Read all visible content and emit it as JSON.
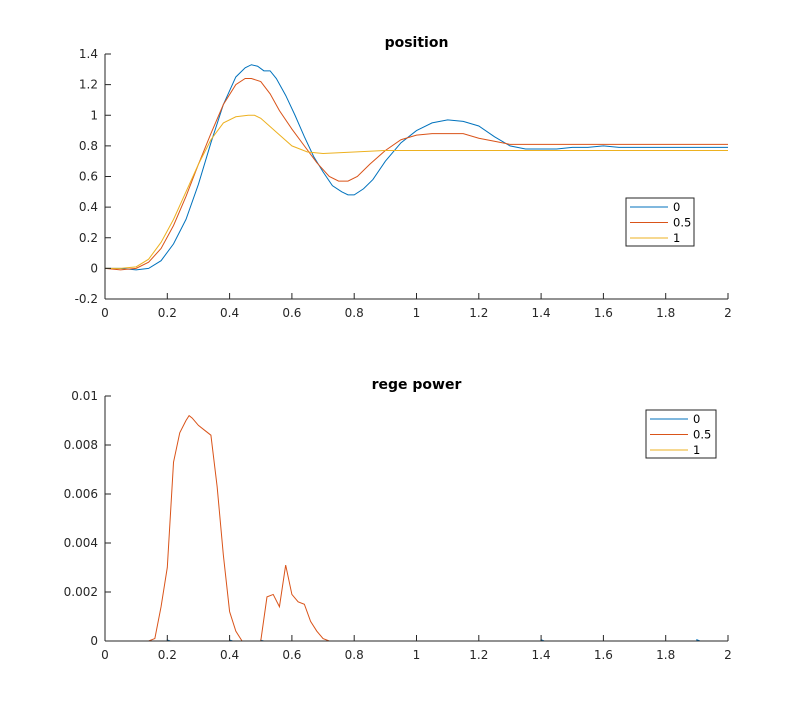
{
  "chart_data": [
    {
      "type": "line",
      "title": "position",
      "xlabel": "",
      "ylabel": "",
      "xlim": [
        0,
        2
      ],
      "ylim": [
        -0.2,
        1.4
      ],
      "xticks": [
        "0",
        "0.2",
        "0.4",
        "0.6",
        "0.8",
        "1",
        "1.2",
        "1.4",
        "1.6",
        "1.8",
        "2"
      ],
      "yticks": [
        "-0.2",
        "0",
        "0.2",
        "0.4",
        "0.6",
        "0.8",
        "1",
        "1.2",
        "1.4"
      ],
      "grid": false,
      "legend_position": "right",
      "series": [
        {
          "name": "0",
          "color": "#0072BD",
          "x": [
            0,
            0.05,
            0.1,
            0.14,
            0.18,
            0.22,
            0.26,
            0.3,
            0.34,
            0.38,
            0.42,
            0.45,
            0.47,
            0.49,
            0.51,
            0.53,
            0.55,
            0.58,
            0.61,
            0.64,
            0.67,
            0.7,
            0.73,
            0.76,
            0.78,
            0.8,
            0.83,
            0.86,
            0.9,
            0.95,
            1.0,
            1.05,
            1.1,
            1.15,
            1.2,
            1.25,
            1.3,
            1.35,
            1.4,
            1.45,
            1.5,
            1.55,
            1.6,
            1.65,
            1.7,
            1.75,
            1.8,
            1.85,
            1.9,
            1.95,
            2.0
          ],
          "y": [
            0,
            0,
            -0.01,
            0.0,
            0.05,
            0.16,
            0.32,
            0.55,
            0.82,
            1.07,
            1.25,
            1.31,
            1.33,
            1.32,
            1.29,
            1.29,
            1.24,
            1.13,
            1.0,
            0.86,
            0.73,
            0.63,
            0.54,
            0.5,
            0.48,
            0.48,
            0.52,
            0.58,
            0.7,
            0.82,
            0.9,
            0.95,
            0.97,
            0.96,
            0.93,
            0.86,
            0.8,
            0.78,
            0.78,
            0.78,
            0.79,
            0.79,
            0.8,
            0.79,
            0.79,
            0.79,
            0.79,
            0.79,
            0.79,
            0.79,
            0.79
          ]
        },
        {
          "name": "0.5",
          "color": "#D95319",
          "x": [
            0,
            0.05,
            0.1,
            0.14,
            0.18,
            0.22,
            0.26,
            0.3,
            0.34,
            0.38,
            0.42,
            0.45,
            0.47,
            0.5,
            0.53,
            0.56,
            0.6,
            0.64,
            0.68,
            0.72,
            0.75,
            0.78,
            0.81,
            0.85,
            0.9,
            0.95,
            1.0,
            1.05,
            1.1,
            1.15,
            1.2,
            1.25,
            1.3,
            1.4,
            1.5,
            1.6,
            1.7,
            1.8,
            1.9,
            2.0
          ],
          "y": [
            0,
            -0.01,
            0.0,
            0.04,
            0.13,
            0.28,
            0.47,
            0.68,
            0.88,
            1.07,
            1.2,
            1.24,
            1.24,
            1.22,
            1.14,
            1.03,
            0.91,
            0.8,
            0.69,
            0.6,
            0.57,
            0.57,
            0.6,
            0.68,
            0.77,
            0.84,
            0.87,
            0.88,
            0.88,
            0.88,
            0.85,
            0.83,
            0.81,
            0.81,
            0.81,
            0.81,
            0.81,
            0.81,
            0.81,
            0.81
          ]
        },
        {
          "name": "1",
          "color": "#EDB120",
          "x": [
            0,
            0.05,
            0.1,
            0.14,
            0.18,
            0.22,
            0.26,
            0.3,
            0.34,
            0.38,
            0.42,
            0.46,
            0.48,
            0.5,
            0.55,
            0.6,
            0.65,
            0.7,
            0.8,
            0.9,
            1.0,
            1.2,
            1.4,
            1.6,
            1.8,
            2.0
          ],
          "y": [
            0,
            0,
            0.01,
            0.06,
            0.17,
            0.32,
            0.5,
            0.68,
            0.84,
            0.95,
            0.99,
            1.0,
            1.0,
            0.98,
            0.89,
            0.8,
            0.76,
            0.75,
            0.76,
            0.77,
            0.77,
            0.77,
            0.77,
            0.77,
            0.77,
            0.77
          ]
        }
      ]
    },
    {
      "type": "line",
      "title": "rege power",
      "xlabel": "",
      "ylabel": "",
      "xlim": [
        0,
        2
      ],
      "ylim": [
        0,
        0.01
      ],
      "xticks": [
        "0",
        "0.2",
        "0.4",
        "0.6",
        "0.8",
        "1",
        "1.2",
        "1.4",
        "1.6",
        "1.8",
        "2"
      ],
      "yticks": [
        "0",
        "0.002",
        "0.004",
        "0.006",
        "0.008",
        "0.01"
      ],
      "grid": false,
      "legend_position": "top-right",
      "series": [
        {
          "name": "0",
          "color": "#0072BD",
          "x": [
            0,
            0.2,
            0.2,
            0.21,
            0.4,
            0.4,
            0.41,
            0.5,
            0.5,
            0.51,
            0.8,
            1.0,
            1.4,
            1.4,
            1.41,
            1.6,
            1.9,
            1.9,
            1.91,
            2.0
          ],
          "y": [
            0,
            0,
            4e-05,
            0,
            0,
            4e-05,
            0,
            0,
            3e-05,
            0,
            0,
            0,
            0,
            5e-05,
            0,
            0,
            0,
            5e-05,
            0,
            0
          ]
        },
        {
          "name": "0.5",
          "color": "#D95319",
          "x": [
            0,
            0.14,
            0.16,
            0.18,
            0.2,
            0.22,
            0.24,
            0.26,
            0.27,
            0.28,
            0.3,
            0.32,
            0.34,
            0.36,
            0.38,
            0.4,
            0.42,
            0.44,
            0.46,
            0.48,
            0.5,
            0.52,
            0.54,
            0.56,
            0.58,
            0.6,
            0.62,
            0.64,
            0.66,
            0.68,
            0.7,
            0.72,
            2.0
          ],
          "y": [
            0,
            0,
            0.0001,
            0.0014,
            0.003,
            0.0073,
            0.0085,
            0.009,
            0.0092,
            0.0091,
            0.0088,
            0.0086,
            0.0084,
            0.0063,
            0.0035,
            0.0012,
            0.0004,
            0,
            0,
            0,
            0,
            0.0018,
            0.0019,
            0.0014,
            0.0031,
            0.0019,
            0.0016,
            0.0015,
            0.0008,
            0.0004,
            0.0001,
            0,
            0
          ]
        },
        {
          "name": "1",
          "color": "#EDB120",
          "x": [
            0,
            2.0
          ],
          "y": [
            0,
            0
          ]
        }
      ]
    }
  ]
}
